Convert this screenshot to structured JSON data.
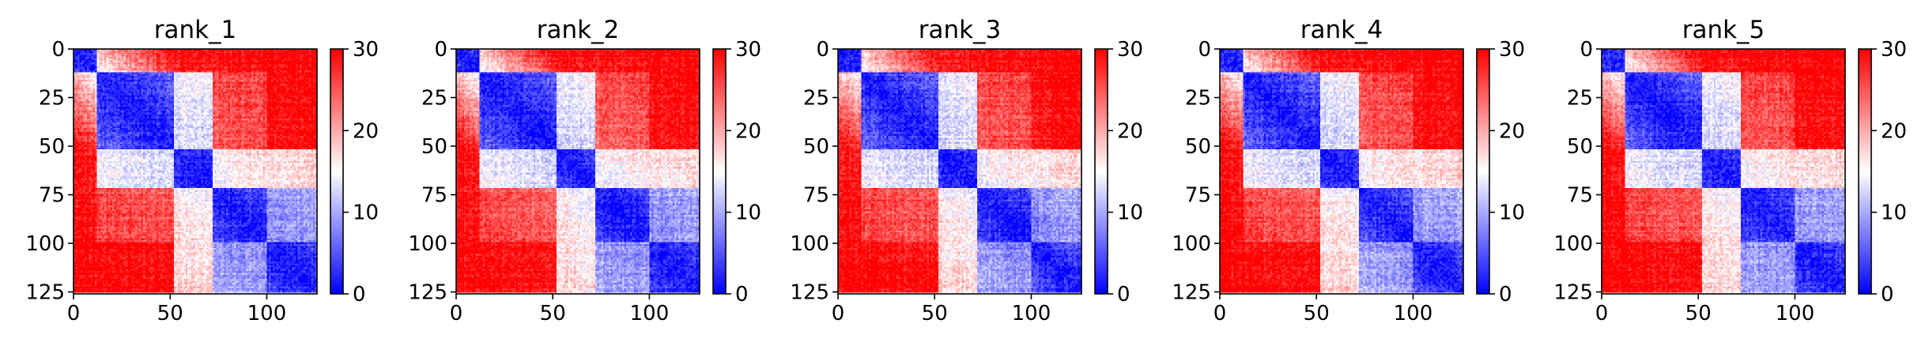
{
  "chart_data": [
    {
      "type": "heatmap",
      "title": "rank_1",
      "n": 126,
      "x_ticks": [
        0,
        50,
        100
      ],
      "y_ticks": [
        0,
        25,
        50,
        75,
        100,
        125
      ],
      "colorbar": {
        "min": 0,
        "max": 30,
        "ticks": [
          0,
          10,
          20,
          30
        ],
        "colormap": "bwr"
      },
      "blocks": [
        [
          0,
          12
        ],
        [
          12,
          52
        ],
        [
          52,
          72
        ],
        [
          72,
          100
        ],
        [
          100,
          126
        ]
      ]
    },
    {
      "type": "heatmap",
      "title": "rank_2",
      "n": 126,
      "x_ticks": [
        0,
        50,
        100
      ],
      "y_ticks": [
        0,
        25,
        50,
        75,
        100,
        125
      ],
      "colorbar": {
        "min": 0,
        "max": 30,
        "ticks": [
          0,
          10,
          20,
          30
        ],
        "colormap": "bwr"
      },
      "blocks": [
        [
          0,
          12
        ],
        [
          12,
          52
        ],
        [
          52,
          72
        ],
        [
          72,
          100
        ],
        [
          100,
          126
        ]
      ]
    },
    {
      "type": "heatmap",
      "title": "rank_3",
      "n": 126,
      "x_ticks": [
        0,
        50,
        100
      ],
      "y_ticks": [
        0,
        25,
        50,
        75,
        100,
        125
      ],
      "colorbar": {
        "min": 0,
        "max": 30,
        "ticks": [
          0,
          10,
          20,
          30
        ],
        "colormap": "bwr"
      },
      "blocks": [
        [
          0,
          12
        ],
        [
          12,
          52
        ],
        [
          52,
          72
        ],
        [
          72,
          100
        ],
        [
          100,
          126
        ]
      ]
    },
    {
      "type": "heatmap",
      "title": "rank_4",
      "n": 126,
      "x_ticks": [
        0,
        50,
        100
      ],
      "y_ticks": [
        0,
        25,
        50,
        75,
        100,
        125
      ],
      "colorbar": {
        "min": 0,
        "max": 30,
        "ticks": [
          0,
          10,
          20,
          30
        ],
        "colormap": "bwr"
      },
      "blocks": [
        [
          0,
          12
        ],
        [
          12,
          52
        ],
        [
          52,
          72
        ],
        [
          72,
          100
        ],
        [
          100,
          126
        ]
      ]
    },
    {
      "type": "heatmap",
      "title": "rank_5",
      "n": 126,
      "x_ticks": [
        0,
        50,
        100
      ],
      "y_ticks": [
        0,
        25,
        50,
        75,
        100,
        125
      ],
      "colorbar": {
        "min": 0,
        "max": 30,
        "ticks": [
          0,
          10,
          20,
          30
        ],
        "colormap": "bwr"
      },
      "blocks": [
        [
          0,
          12
        ],
        [
          12,
          52
        ],
        [
          52,
          72
        ],
        [
          72,
          100
        ],
        [
          100,
          126
        ]
      ]
    }
  ]
}
